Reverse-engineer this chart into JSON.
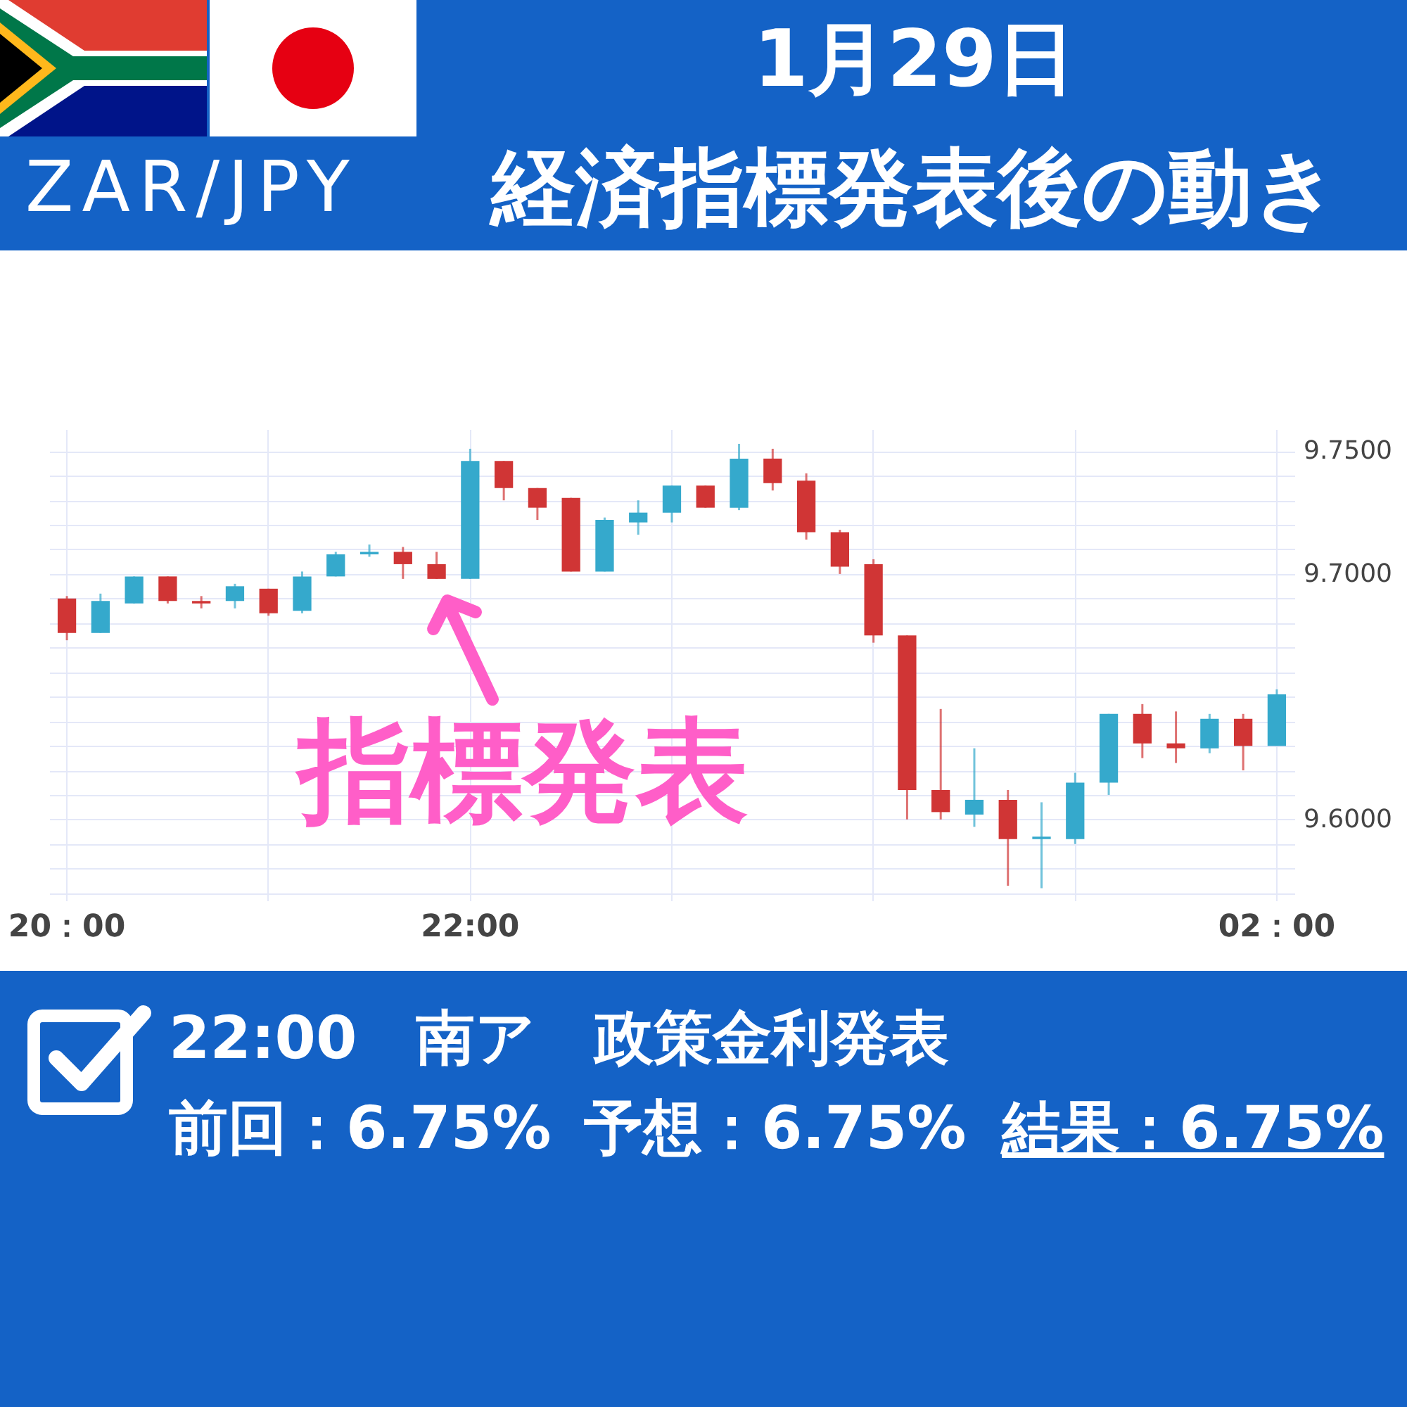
{
  "chart_data": {
    "type": "candlestick",
    "title": "1月29日",
    "subtitle": "経済指標発表後の動き",
    "categories": [
      "20：00",
      null,
      null,
      null,
      null,
      null,
      null,
      null,
      null,
      null,
      null,
      null,
      "22:00",
      null,
      null,
      null,
      null,
      null,
      null,
      null,
      null,
      null,
      null,
      null,
      null,
      null,
      null,
      null,
      null,
      null,
      null,
      null,
      null,
      null,
      null,
      null,
      "02：00"
    ],
    "ohlc": [
      [
        9.69,
        9.691,
        9.673,
        9.676
      ],
      [
        9.676,
        9.692,
        9.676,
        9.689
      ],
      [
        9.688,
        9.699,
        9.688,
        9.699
      ],
      [
        9.699,
        9.699,
        9.688,
        9.689
      ],
      [
        9.689,
        9.691,
        9.686,
        9.688
      ],
      [
        9.689,
        9.696,
        9.686,
        9.695
      ],
      [
        9.694,
        9.694,
        9.683,
        9.684
      ],
      [
        9.685,
        9.701,
        9.684,
        9.699
      ],
      [
        9.699,
        9.709,
        9.699,
        9.708
      ],
      [
        9.708,
        9.712,
        9.707,
        9.709
      ],
      [
        9.709,
        9.711,
        9.698,
        9.704
      ],
      [
        9.704,
        9.709,
        9.698,
        9.698
      ],
      [
        9.698,
        9.751,
        9.698,
        9.746
      ],
      [
        9.746,
        9.746,
        9.73,
        9.735
      ],
      [
        9.735,
        9.735,
        9.722,
        9.727
      ],
      [
        9.731,
        9.731,
        9.701,
        9.701
      ],
      [
        9.701,
        9.723,
        9.701,
        9.722
      ],
      [
        9.721,
        9.73,
        9.716,
        9.725
      ],
      [
        9.725,
        9.736,
        9.721,
        9.736
      ],
      [
        9.736,
        9.736,
        9.727,
        9.727
      ],
      [
        9.727,
        9.753,
        9.726,
        9.747
      ],
      [
        9.747,
        9.751,
        9.734,
        9.737
      ],
      [
        9.738,
        9.741,
        9.714,
        9.717
      ],
      [
        9.717,
        9.718,
        9.7,
        9.703
      ],
      [
        9.704,
        9.706,
        9.672,
        9.675
      ],
      [
        9.675,
        9.675,
        9.6,
        9.612
      ],
      [
        9.612,
        9.645,
        9.6,
        9.603
      ],
      [
        9.602,
        9.629,
        9.597,
        9.608
      ],
      [
        9.608,
        9.612,
        9.573,
        9.592
      ],
      [
        9.592,
        9.607,
        9.572,
        9.593
      ],
      [
        9.592,
        9.619,
        9.59,
        9.615
      ],
      [
        9.615,
        9.643,
        9.61,
        9.643
      ],
      [
        9.643,
        9.647,
        9.625,
        9.631
      ],
      [
        9.631,
        9.644,
        9.623,
        9.629
      ],
      [
        9.629,
        9.643,
        9.627,
        9.641
      ],
      [
        9.641,
        9.643,
        9.62,
        9.63
      ],
      [
        9.63,
        9.653,
        9.63,
        9.651
      ]
    ],
    "colors": [
      "#d03535",
      "#35a9cc",
      "#35a9cc",
      "#d03535",
      "#d03535",
      "#35a9cc",
      "#d03535",
      "#35a9cc",
      "#35a9cc",
      "#35a9cc",
      "#d03535",
      "#d03535",
      "#35a9cc",
      "#d03535",
      "#d03535",
      "#d03535",
      "#35a9cc",
      "#35a9cc",
      "#35a9cc",
      "#d03535",
      "#35a9cc",
      "#d03535",
      "#d03535",
      "#d03535",
      "#d03535",
      "#d03535",
      "#d03535",
      "#35a9cc",
      "#d03535",
      "#35a9cc",
      "#35a9cc",
      "#35a9cc",
      "#d03535",
      "#d03535",
      "#35a9cc",
      "#d03535",
      "#35a9cc"
    ],
    "ylim": [
      9.567,
      9.759
    ],
    "yticks": [
      {
        "value": 9.57,
        "label": null
      },
      {
        "value": 9.58,
        "label": null
      },
      {
        "value": 9.59,
        "label": null
      },
      {
        "value": 9.6,
        "label": "9.6000"
      },
      {
        "value": 9.61,
        "label": null
      },
      {
        "value": 9.62,
        "label": null
      },
      {
        "value": 9.63,
        "label": null
      },
      {
        "value": 9.64,
        "label": null
      },
      {
        "value": 9.65,
        "label": null
      },
      {
        "value": 9.66,
        "label": null
      },
      {
        "value": 9.67,
        "label": null
      },
      {
        "value": 9.68,
        "label": null
      },
      {
        "value": 9.69,
        "label": null
      },
      {
        "value": 9.7,
        "label": "9.7000"
      },
      {
        "value": 9.71,
        "label": null
      },
      {
        "value": 9.72,
        "label": null
      },
      {
        "value": 9.73,
        "label": null
      },
      {
        "value": 9.74,
        "label": null
      },
      {
        "value": 9.75,
        "label": "9.7500"
      }
    ],
    "grid": true,
    "annotations": [
      "ZAR/JPY",
      {
        "text": "指標発表",
        "x": "22:00",
        "y": 9.698
      },
      "22:00　南ア　政策金利発表",
      "前回：6.75%",
      "予想：6.75%",
      "結果：6.75%"
    ]
  }
}
